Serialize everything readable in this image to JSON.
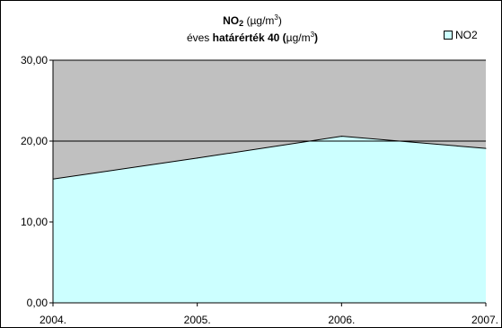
{
  "chart_data": {
    "type": "area",
    "title": {
      "line1_main": "NO",
      "line1_sub": "2",
      "line1_unit_open": " (µg/m",
      "line1_unit_sup": "3",
      "line1_unit_close": ")",
      "line2_prefix": "éves ",
      "line2_bold": "határérték 40 (",
      "line2_unit": "µg/m",
      "line2_sup": "3",
      "line2_close": ")"
    },
    "categories": [
      "2004.",
      "2005.",
      "2006.",
      "2007."
    ],
    "series": [
      {
        "name": "NO2",
        "values": [
          15.3,
          17.9,
          20.6,
          19.1
        ],
        "color": "#ccffff"
      }
    ],
    "reference_line": 20,
    "ylim": [
      0,
      30
    ],
    "yticks": [
      "0,00",
      "10,00",
      "20,00",
      "30,00"
    ],
    "plot_background": "#c0c0c0",
    "gridlines": true,
    "legend_position": "top-right"
  }
}
